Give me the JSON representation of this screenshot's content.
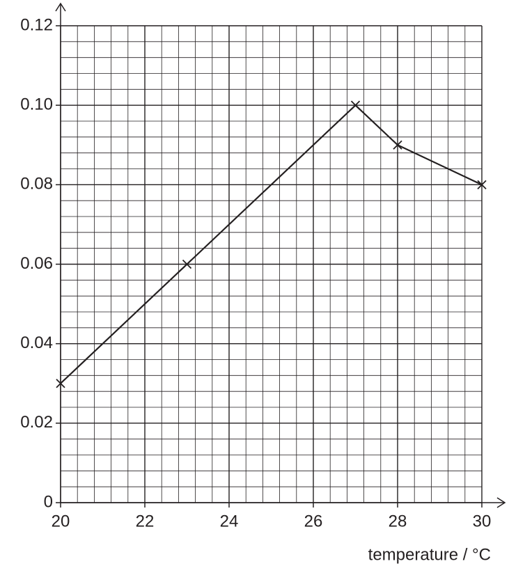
{
  "chart_data": {
    "type": "line",
    "x_label": "temperature / °C",
    "series": [
      {
        "x": [
          20,
          23,
          27,
          28,
          30
        ],
        "values": [
          0.03,
          0.06,
          0.1,
          0.09,
          0.08
        ],
        "color": "#231f20"
      }
    ],
    "xlim": [
      20,
      30
    ],
    "xticks": [
      20,
      22,
      24,
      26,
      28,
      30
    ],
    "ylim": [
      0,
      0.12
    ],
    "yticks": [
      0,
      0.02,
      0.04,
      0.06,
      0.08,
      {
        "value": 0.1,
        "label": "0.10"
      },
      0.12
    ],
    "grid": true,
    "marker": "x"
  }
}
